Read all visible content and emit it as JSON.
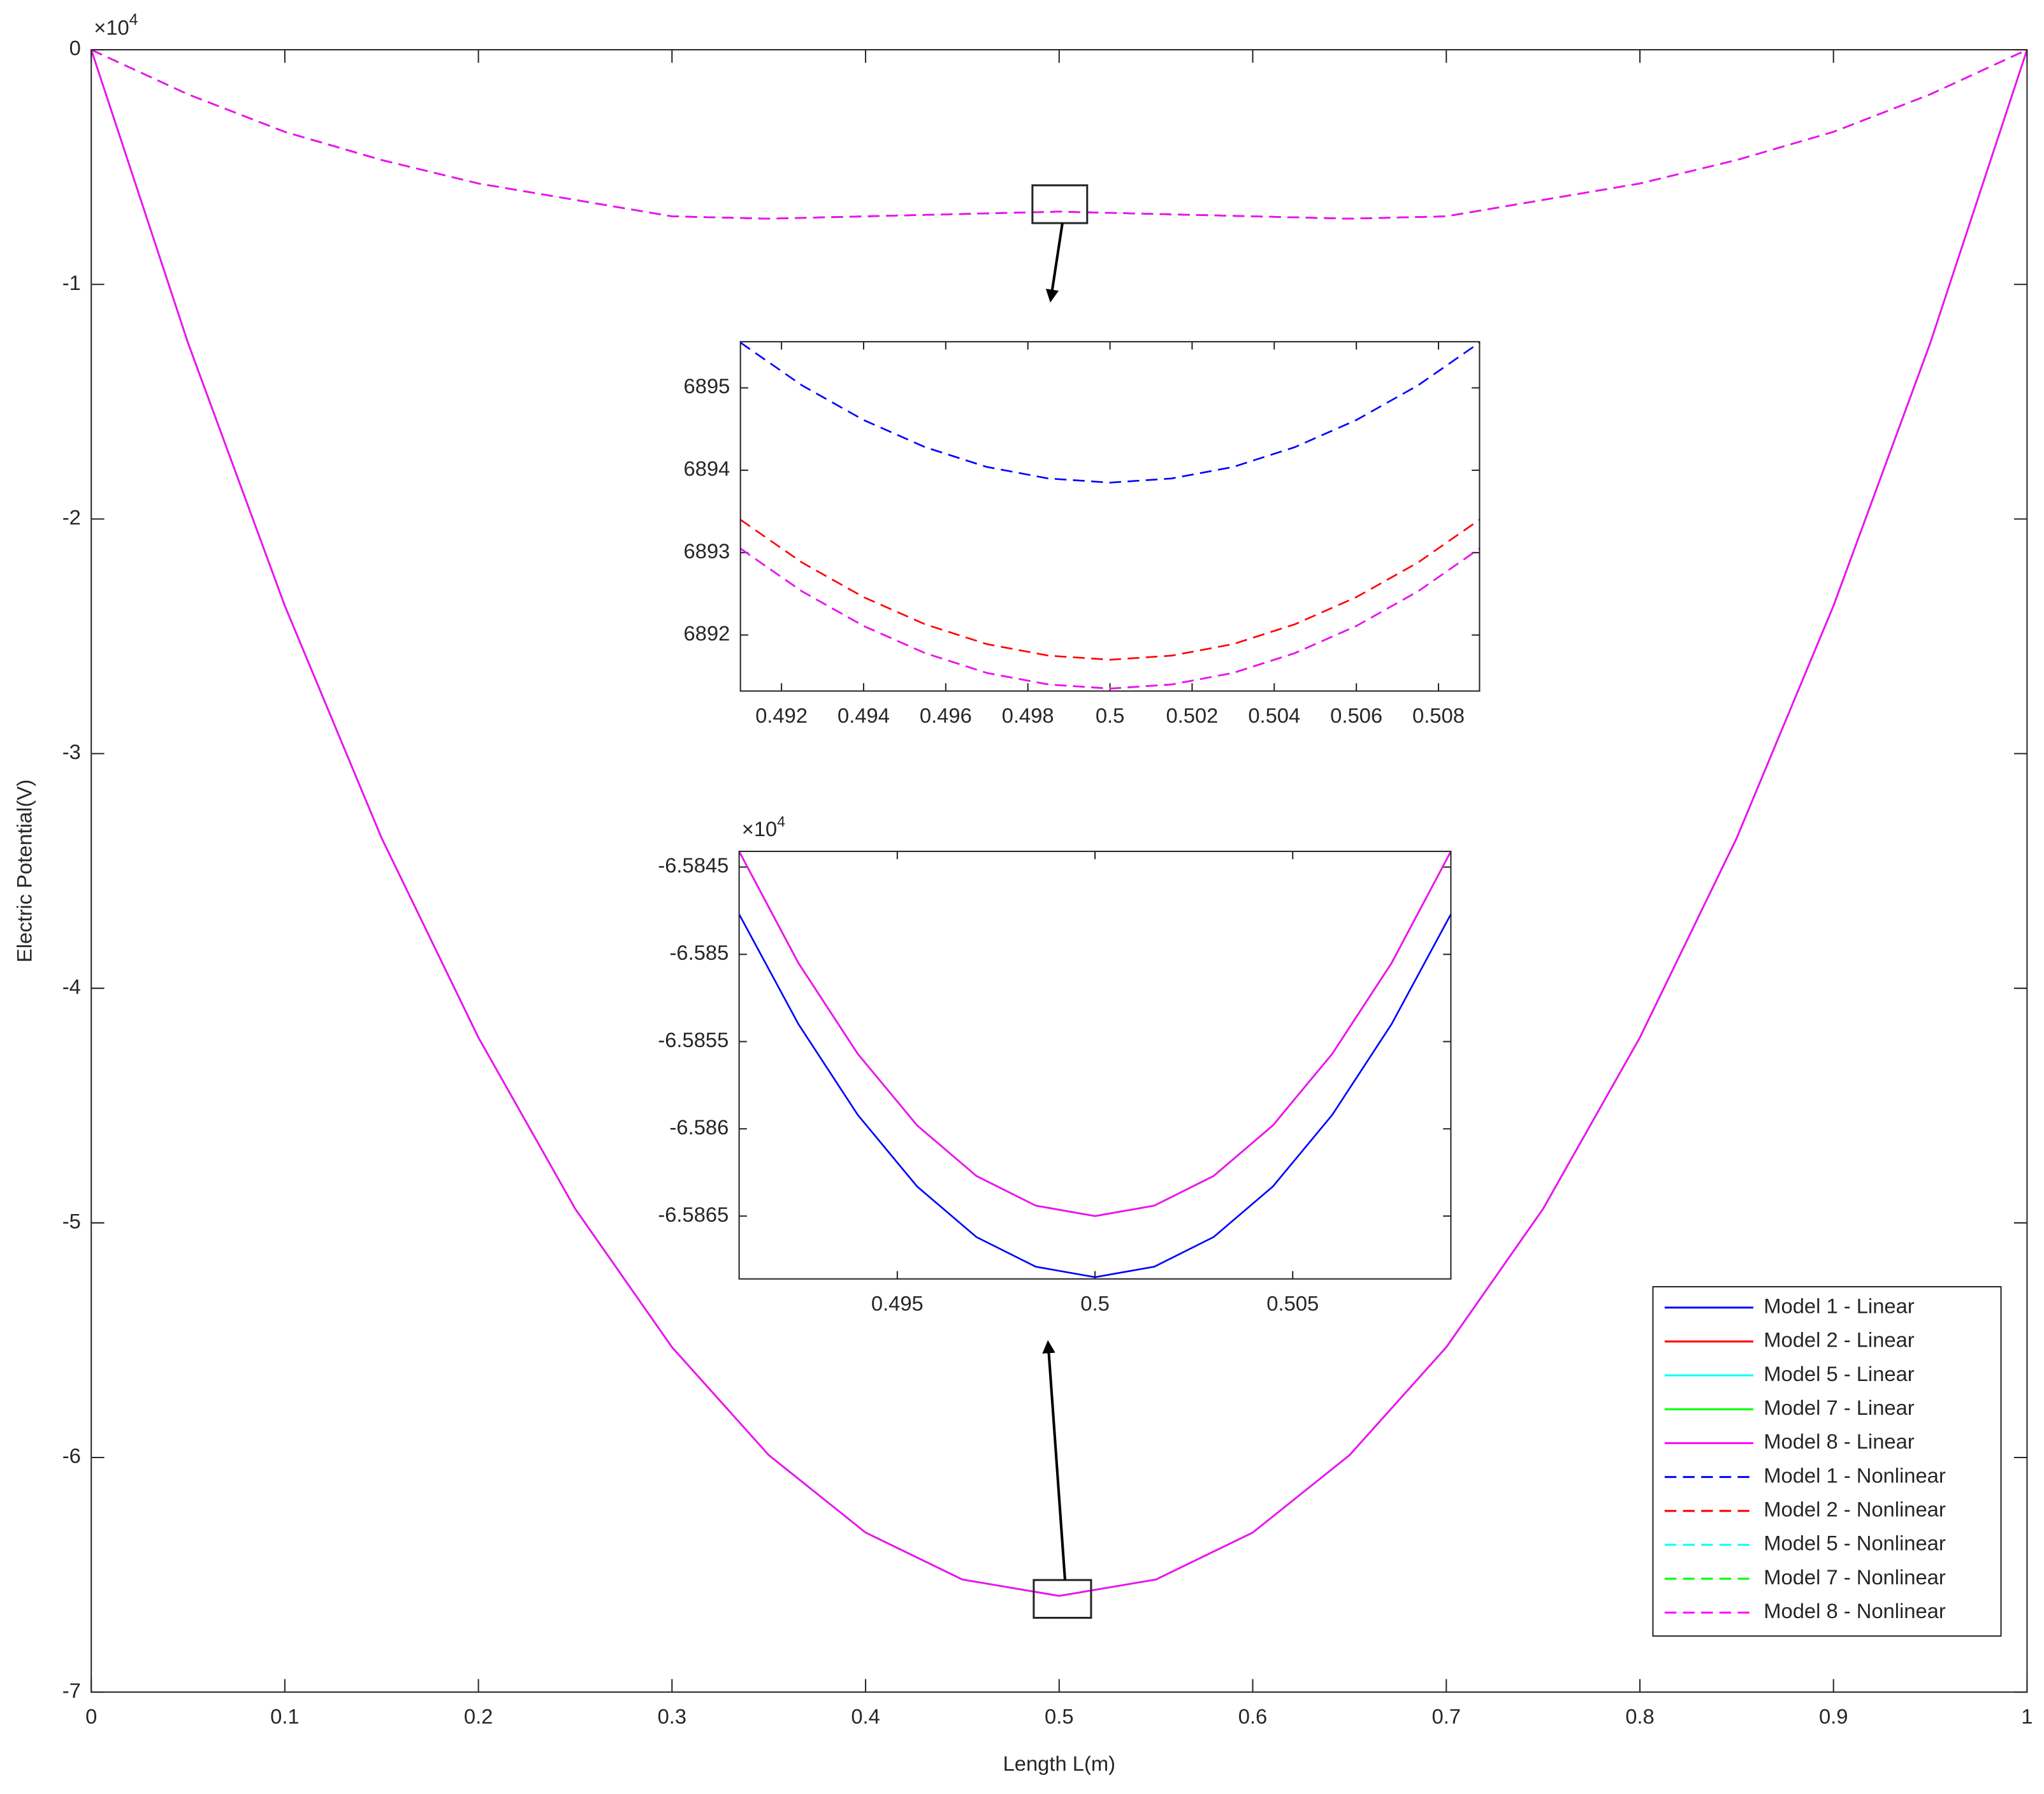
{
  "chart_data": [
    {
      "type": "line",
      "xlabel": "Length L(m)",
      "ylabel": "Electric Potential(V)",
      "y_exponent": {
        "base": "×10",
        "power": "4"
      },
      "x": [
        0,
        0.05,
        0.1,
        0.15,
        0.2,
        0.25,
        0.3,
        0.35,
        0.4,
        0.45,
        0.5,
        0.55,
        0.6,
        0.65,
        0.7,
        0.75,
        0.8,
        0.85,
        0.9,
        0.95,
        1
      ],
      "xlim": [
        0,
        1
      ],
      "ylim": [
        -7,
        0
      ],
      "xticks": [
        0,
        0.1,
        0.2,
        0.3,
        0.4,
        0.5,
        0.6,
        0.7,
        0.8,
        0.9,
        1
      ],
      "yticks": [
        0,
        -1,
        -2,
        -3,
        -4,
        -5,
        -6,
        -7
      ],
      "legend": "lower right",
      "series": [
        {
          "name": "Model 1 - Linear",
          "color": "#0000ff",
          "linestyle": "solid",
          "values": [
            0,
            -1.25,
            -2.37,
            -3.36,
            -4.21,
            -4.94,
            -5.53,
            -5.99,
            -6.32,
            -6.52,
            -6.59,
            -6.52,
            -6.32,
            -5.99,
            -5.53,
            -4.94,
            -4.21,
            -3.36,
            -2.37,
            -1.25,
            0
          ]
        },
        {
          "name": "Model 2 - Linear",
          "color": "#ff0000",
          "linestyle": "solid",
          "values": [
            0,
            -1.25,
            -2.37,
            -3.36,
            -4.21,
            -4.94,
            -5.53,
            -5.99,
            -6.32,
            -6.52,
            -6.59,
            -6.52,
            -6.32,
            -5.99,
            -5.53,
            -4.94,
            -4.21,
            -3.36,
            -2.37,
            -1.25,
            0
          ]
        },
        {
          "name": "Model 5 - Linear",
          "color": "#00ffff",
          "linestyle": "solid",
          "values": [
            0,
            -1.25,
            -2.37,
            -3.36,
            -4.21,
            -4.94,
            -5.53,
            -5.99,
            -6.32,
            -6.52,
            -6.59,
            -6.52,
            -6.32,
            -5.99,
            -5.53,
            -4.94,
            -4.21,
            -3.36,
            -2.37,
            -1.25,
            0
          ]
        },
        {
          "name": "Model 7 - Linear",
          "color": "#00ff00",
          "linestyle": "solid",
          "values": [
            0,
            -1.25,
            -2.37,
            -3.36,
            -4.21,
            -4.94,
            -5.53,
            -5.99,
            -6.32,
            -6.52,
            -6.59,
            -6.52,
            -6.32,
            -5.99,
            -5.53,
            -4.94,
            -4.21,
            -3.36,
            -2.37,
            -1.25,
            0
          ]
        },
        {
          "name": "Model 8 - Linear",
          "color": "#ff00ff",
          "linestyle": "solid",
          "values": [
            0,
            -1.25,
            -2.37,
            -3.36,
            -4.21,
            -4.94,
            -5.53,
            -5.99,
            -6.32,
            -6.52,
            -6.59,
            -6.52,
            -6.32,
            -5.99,
            -5.53,
            -4.94,
            -4.21,
            -3.36,
            -2.37,
            -1.25,
            0
          ]
        },
        {
          "name": "Model 1 - Nonlinear",
          "color": "#0000ff",
          "linestyle": "dashed",
          "values": [
            0,
            -0.19,
            -0.35,
            -0.47,
            -0.57,
            -0.64,
            -0.71,
            -0.72,
            -0.71,
            -0.7,
            -0.69,
            -0.7,
            -0.71,
            -0.72,
            -0.71,
            -0.64,
            -0.57,
            -0.47,
            -0.35,
            -0.19,
            0
          ]
        },
        {
          "name": "Model 2 - Nonlinear",
          "color": "#ff0000",
          "linestyle": "dashed",
          "values": [
            0,
            -0.19,
            -0.35,
            -0.47,
            -0.57,
            -0.64,
            -0.71,
            -0.72,
            -0.71,
            -0.7,
            -0.69,
            -0.7,
            -0.71,
            -0.72,
            -0.71,
            -0.64,
            -0.57,
            -0.47,
            -0.35,
            -0.19,
            0
          ]
        },
        {
          "name": "Model 5 - Nonlinear",
          "color": "#00ffff",
          "linestyle": "dashed",
          "values": [
            0,
            -0.19,
            -0.35,
            -0.47,
            -0.57,
            -0.64,
            -0.71,
            -0.72,
            -0.71,
            -0.7,
            -0.69,
            -0.7,
            -0.71,
            -0.72,
            -0.71,
            -0.64,
            -0.57,
            -0.47,
            -0.35,
            -0.19,
            0
          ]
        },
        {
          "name": "Model 7 - Nonlinear",
          "color": "#00ff00",
          "linestyle": "dashed",
          "values": [
            0,
            -0.19,
            -0.35,
            -0.47,
            -0.57,
            -0.64,
            -0.71,
            -0.72,
            -0.71,
            -0.7,
            -0.69,
            -0.7,
            -0.71,
            -0.72,
            -0.71,
            -0.64,
            -0.57,
            -0.47,
            -0.35,
            -0.19,
            0
          ]
        },
        {
          "name": "Model 8 - Nonlinear",
          "color": "#ff00ff",
          "linestyle": "dashed",
          "values": [
            0,
            -0.19,
            -0.35,
            -0.47,
            -0.57,
            -0.64,
            -0.71,
            -0.72,
            -0.71,
            -0.7,
            -0.69,
            -0.7,
            -0.71,
            -0.72,
            -0.71,
            -0.64,
            -0.57,
            -0.47,
            -0.35,
            -0.19,
            0
          ]
        }
      ]
    },
    {
      "type": "line",
      "x": [
        0.491,
        0.4925,
        0.494,
        0.4955,
        0.497,
        0.4985,
        0.5,
        0.5015,
        0.503,
        0.5045,
        0.506,
        0.5075,
        0.509
      ],
      "xlim": [
        0.491,
        0.509
      ],
      "ylim": [
        6891.32,
        6895.56
      ],
      "xticks": [
        0.492,
        0.494,
        0.496,
        0.498,
        0.5,
        0.502,
        0.504,
        0.506,
        0.508
      ],
      "yticks": [
        6892,
        6893,
        6894,
        6895
      ],
      "series": [
        {
          "color": "#0000ff",
          "linestyle": "dashed",
          "values": [
            6895.55,
            6895.03,
            6894.61,
            6894.28,
            6894.04,
            6893.9,
            6893.85,
            6893.9,
            6894.04,
            6894.28,
            6894.61,
            6895.03,
            6895.55
          ]
        },
        {
          "color": "#ff0000",
          "linestyle": "dashed",
          "values": [
            6893.4,
            6892.88,
            6892.46,
            6892.13,
            6891.89,
            6891.75,
            6891.7,
            6891.75,
            6891.89,
            6892.13,
            6892.46,
            6892.88,
            6893.4
          ]
        },
        {
          "color": "#00ffff",
          "linestyle": "dashed",
          "values": [
            6893.05,
            6892.53,
            6892.11,
            6891.78,
            6891.54,
            6891.4,
            6891.35,
            6891.4,
            6891.54,
            6891.78,
            6892.11,
            6892.53,
            6893.05
          ]
        },
        {
          "color": "#00ff00",
          "linestyle": "dashed",
          "values": [
            6893.05,
            6892.53,
            6892.11,
            6891.78,
            6891.54,
            6891.4,
            6891.35,
            6891.4,
            6891.54,
            6891.78,
            6892.11,
            6892.53,
            6893.05
          ]
        },
        {
          "color": "#ff00ff",
          "linestyle": "dashed",
          "values": [
            6893.05,
            6892.53,
            6892.11,
            6891.78,
            6891.54,
            6891.4,
            6891.35,
            6891.4,
            6891.54,
            6891.78,
            6892.11,
            6892.53,
            6893.05
          ]
        }
      ]
    },
    {
      "type": "line",
      "y_exponent": {
        "base": "×10",
        "power": "4"
      },
      "x": [
        0.491,
        0.4925,
        0.494,
        0.4955,
        0.497,
        0.4985,
        0.5,
        0.5015,
        0.503,
        0.5045,
        0.506,
        0.5075,
        0.509
      ],
      "xlim": [
        0.491,
        0.509
      ],
      "ylim": [
        -6.58686,
        -6.58441
      ],
      "xticks": [
        0.495,
        0.5,
        0.505
      ],
      "yticks": [
        -6.5845,
        -6.585,
        -6.5855,
        -6.586,
        -6.5865
      ],
      "series": [
        {
          "color": "#0000ff",
          "linestyle": "solid",
          "values": [
            -6.58477,
            -6.5854,
            -6.58592,
            -6.58633,
            -6.58662,
            -6.58679,
            -6.58685,
            -6.58679,
            -6.58662,
            -6.58633,
            -6.58592,
            -6.5854,
            -6.58477
          ]
        },
        {
          "color": "#ff0000",
          "linestyle": "solid",
          "values": [
            -6.58441,
            -6.58505,
            -6.58557,
            -6.58598,
            -6.58627,
            -6.58644,
            -6.5865,
            -6.58644,
            -6.58627,
            -6.58598,
            -6.58557,
            -6.58505,
            -6.58441
          ]
        },
        {
          "color": "#00ffff",
          "linestyle": "solid",
          "values": [
            -6.58441,
            -6.58505,
            -6.58557,
            -6.58598,
            -6.58627,
            -6.58644,
            -6.5865,
            -6.58644,
            -6.58627,
            -6.58598,
            -6.58557,
            -6.58505,
            -6.58441
          ]
        },
        {
          "color": "#00ff00",
          "linestyle": "solid",
          "values": [
            -6.58441,
            -6.58505,
            -6.58557,
            -6.58598,
            -6.58627,
            -6.58644,
            -6.5865,
            -6.58644,
            -6.58627,
            -6.58598,
            -6.58557,
            -6.58505,
            -6.58441
          ]
        },
        {
          "color": "#ff00ff",
          "linestyle": "solid",
          "values": [
            -6.58441,
            -6.58505,
            -6.58557,
            -6.58598,
            -6.58627,
            -6.58644,
            -6.5865,
            -6.58644,
            -6.58627,
            -6.58598,
            -6.58557,
            -6.58505,
            -6.58441
          ]
        }
      ]
    }
  ]
}
